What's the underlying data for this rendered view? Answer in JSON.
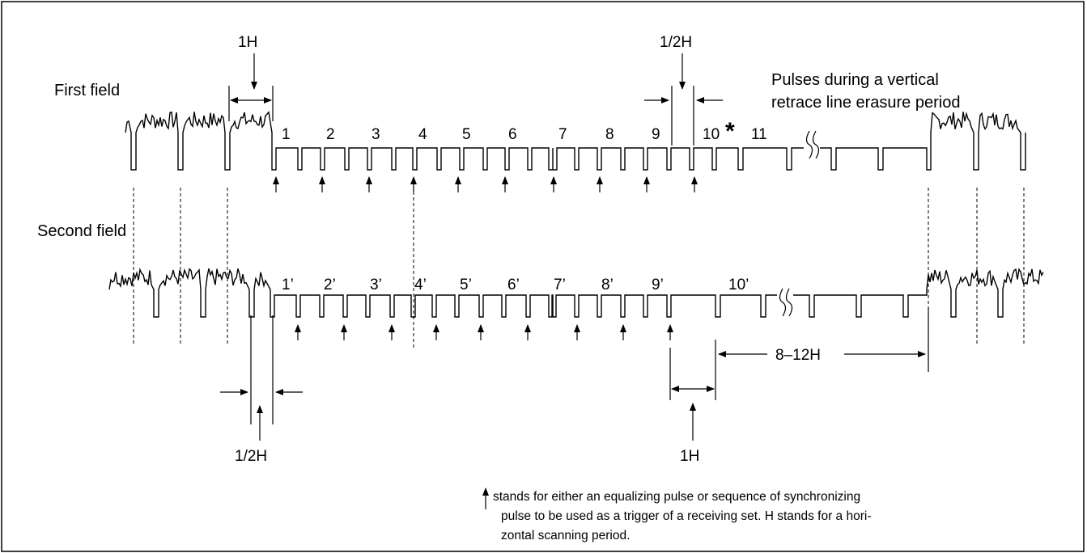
{
  "fields": {
    "first": "First field",
    "second": "Second field"
  },
  "title_note": {
    "line1": "Pulses during a vertical",
    "line2": "retrace line erasure period"
  },
  "first_pulse_labels": [
    "1",
    "2",
    "3",
    "4",
    "5",
    "6",
    "7",
    "8",
    "9",
    "10",
    "11"
  ],
  "first_asterisk": "*",
  "second_pulse_labels": [
    "1’",
    "2’",
    "3’",
    "4’",
    "5’",
    "6’",
    "7’",
    "8’",
    "9’",
    "10’"
  ],
  "dims": {
    "top_1h": "1H",
    "top_half_h": "1/2H",
    "bottom_half_h": "1/2H",
    "bottom_1h": "1H",
    "range": "8–12H"
  },
  "legend": {
    "line1": "stands for either an equalizing pulse or sequence of synchronizing",
    "line2": "pulse to be used as a trigger of a receiving set. H stands for a hori-",
    "line3": "zontal scanning period."
  }
}
